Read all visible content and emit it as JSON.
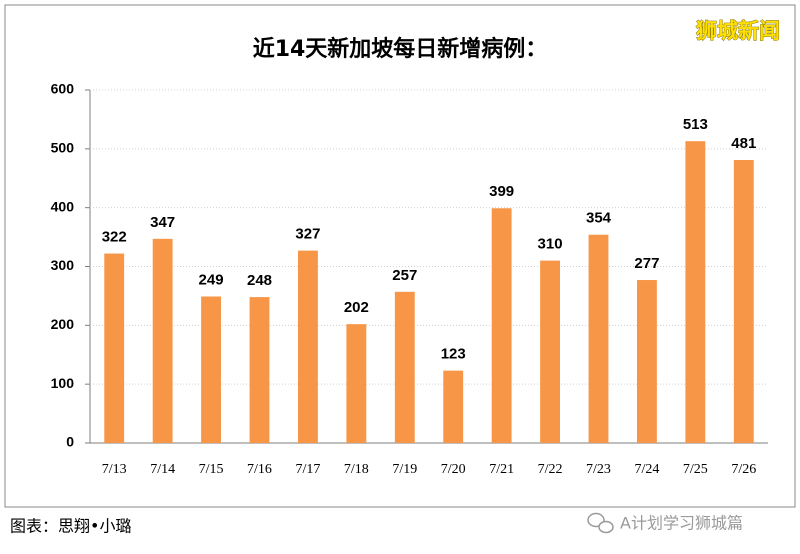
{
  "chart_data": {
    "type": "bar",
    "title": "近14天新加坡每日新增病例：",
    "categories": [
      "7/13",
      "7/14",
      "7/15",
      "7/16",
      "7/17",
      "7/18",
      "7/19",
      "7/20",
      "7/21",
      "7/22",
      "7/23",
      "7/24",
      "7/25",
      "7/26"
    ],
    "values": [
      322,
      347,
      249,
      248,
      327,
      202,
      257,
      123,
      399,
      310,
      354,
      277,
      513,
      481
    ],
    "color": "#f79646",
    "ylim": [
      0,
      600
    ],
    "yticks": [
      0,
      100,
      200,
      300,
      400,
      500,
      600
    ],
    "grid": true
  },
  "watermark": "狮城新闻",
  "footer": {
    "credit": "图表：思翔•小璐",
    "source": "A计划学习狮城篇"
  }
}
